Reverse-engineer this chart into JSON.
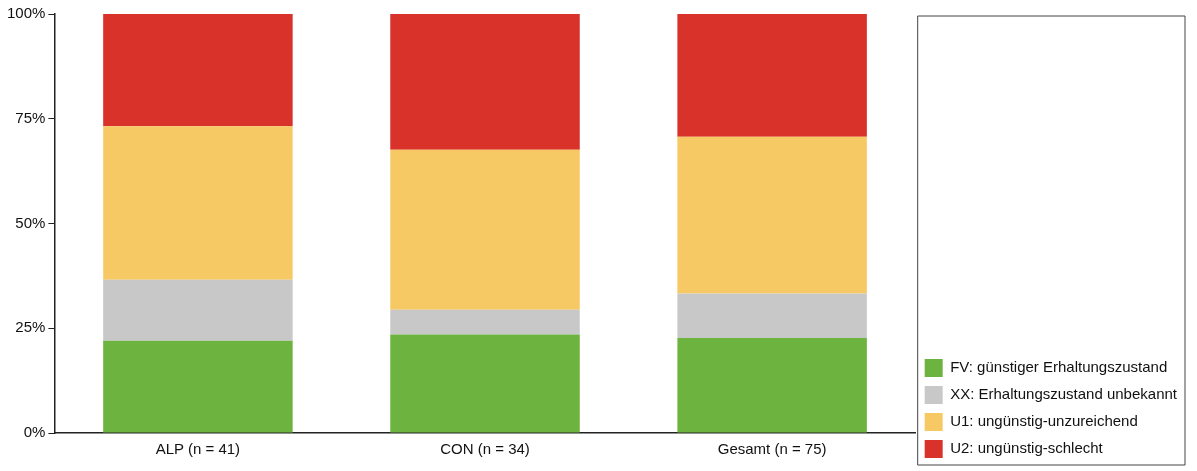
{
  "chart_data": {
    "type": "bar",
    "stacked": true,
    "categories": [
      "ALP (n = 41)",
      "CON (n = 34)",
      "Gesamt (n = 75)"
    ],
    "series": [
      {
        "name": "FV: günstiger Erhaltungszustand",
        "color": "#6db33f",
        "values": [
          22.0,
          23.5,
          22.7
        ]
      },
      {
        "name": "XX: Erhaltungszustand unbekannt",
        "color": "#c8c8c8",
        "values": [
          14.6,
          5.9,
          10.6
        ]
      },
      {
        "name": "U1: ungünstig-unzureichend",
        "color": "#f7c964",
        "values": [
          36.6,
          38.2,
          37.4
        ]
      },
      {
        "name": "U2: ungünstig-schlecht",
        "color": "#d9322a",
        "values": [
          26.8,
          32.4,
          29.3
        ]
      }
    ],
    "ylim": [
      0,
      100
    ],
    "yticks": [
      {
        "value": 0,
        "label": "0%"
      },
      {
        "value": 25,
        "label": "25%"
      },
      {
        "value": 50,
        "label": "50%"
      },
      {
        "value": 75,
        "label": "75%"
      },
      {
        "value": 100,
        "label": "100%"
      }
    ],
    "grid": false,
    "legend": "bottom right"
  }
}
